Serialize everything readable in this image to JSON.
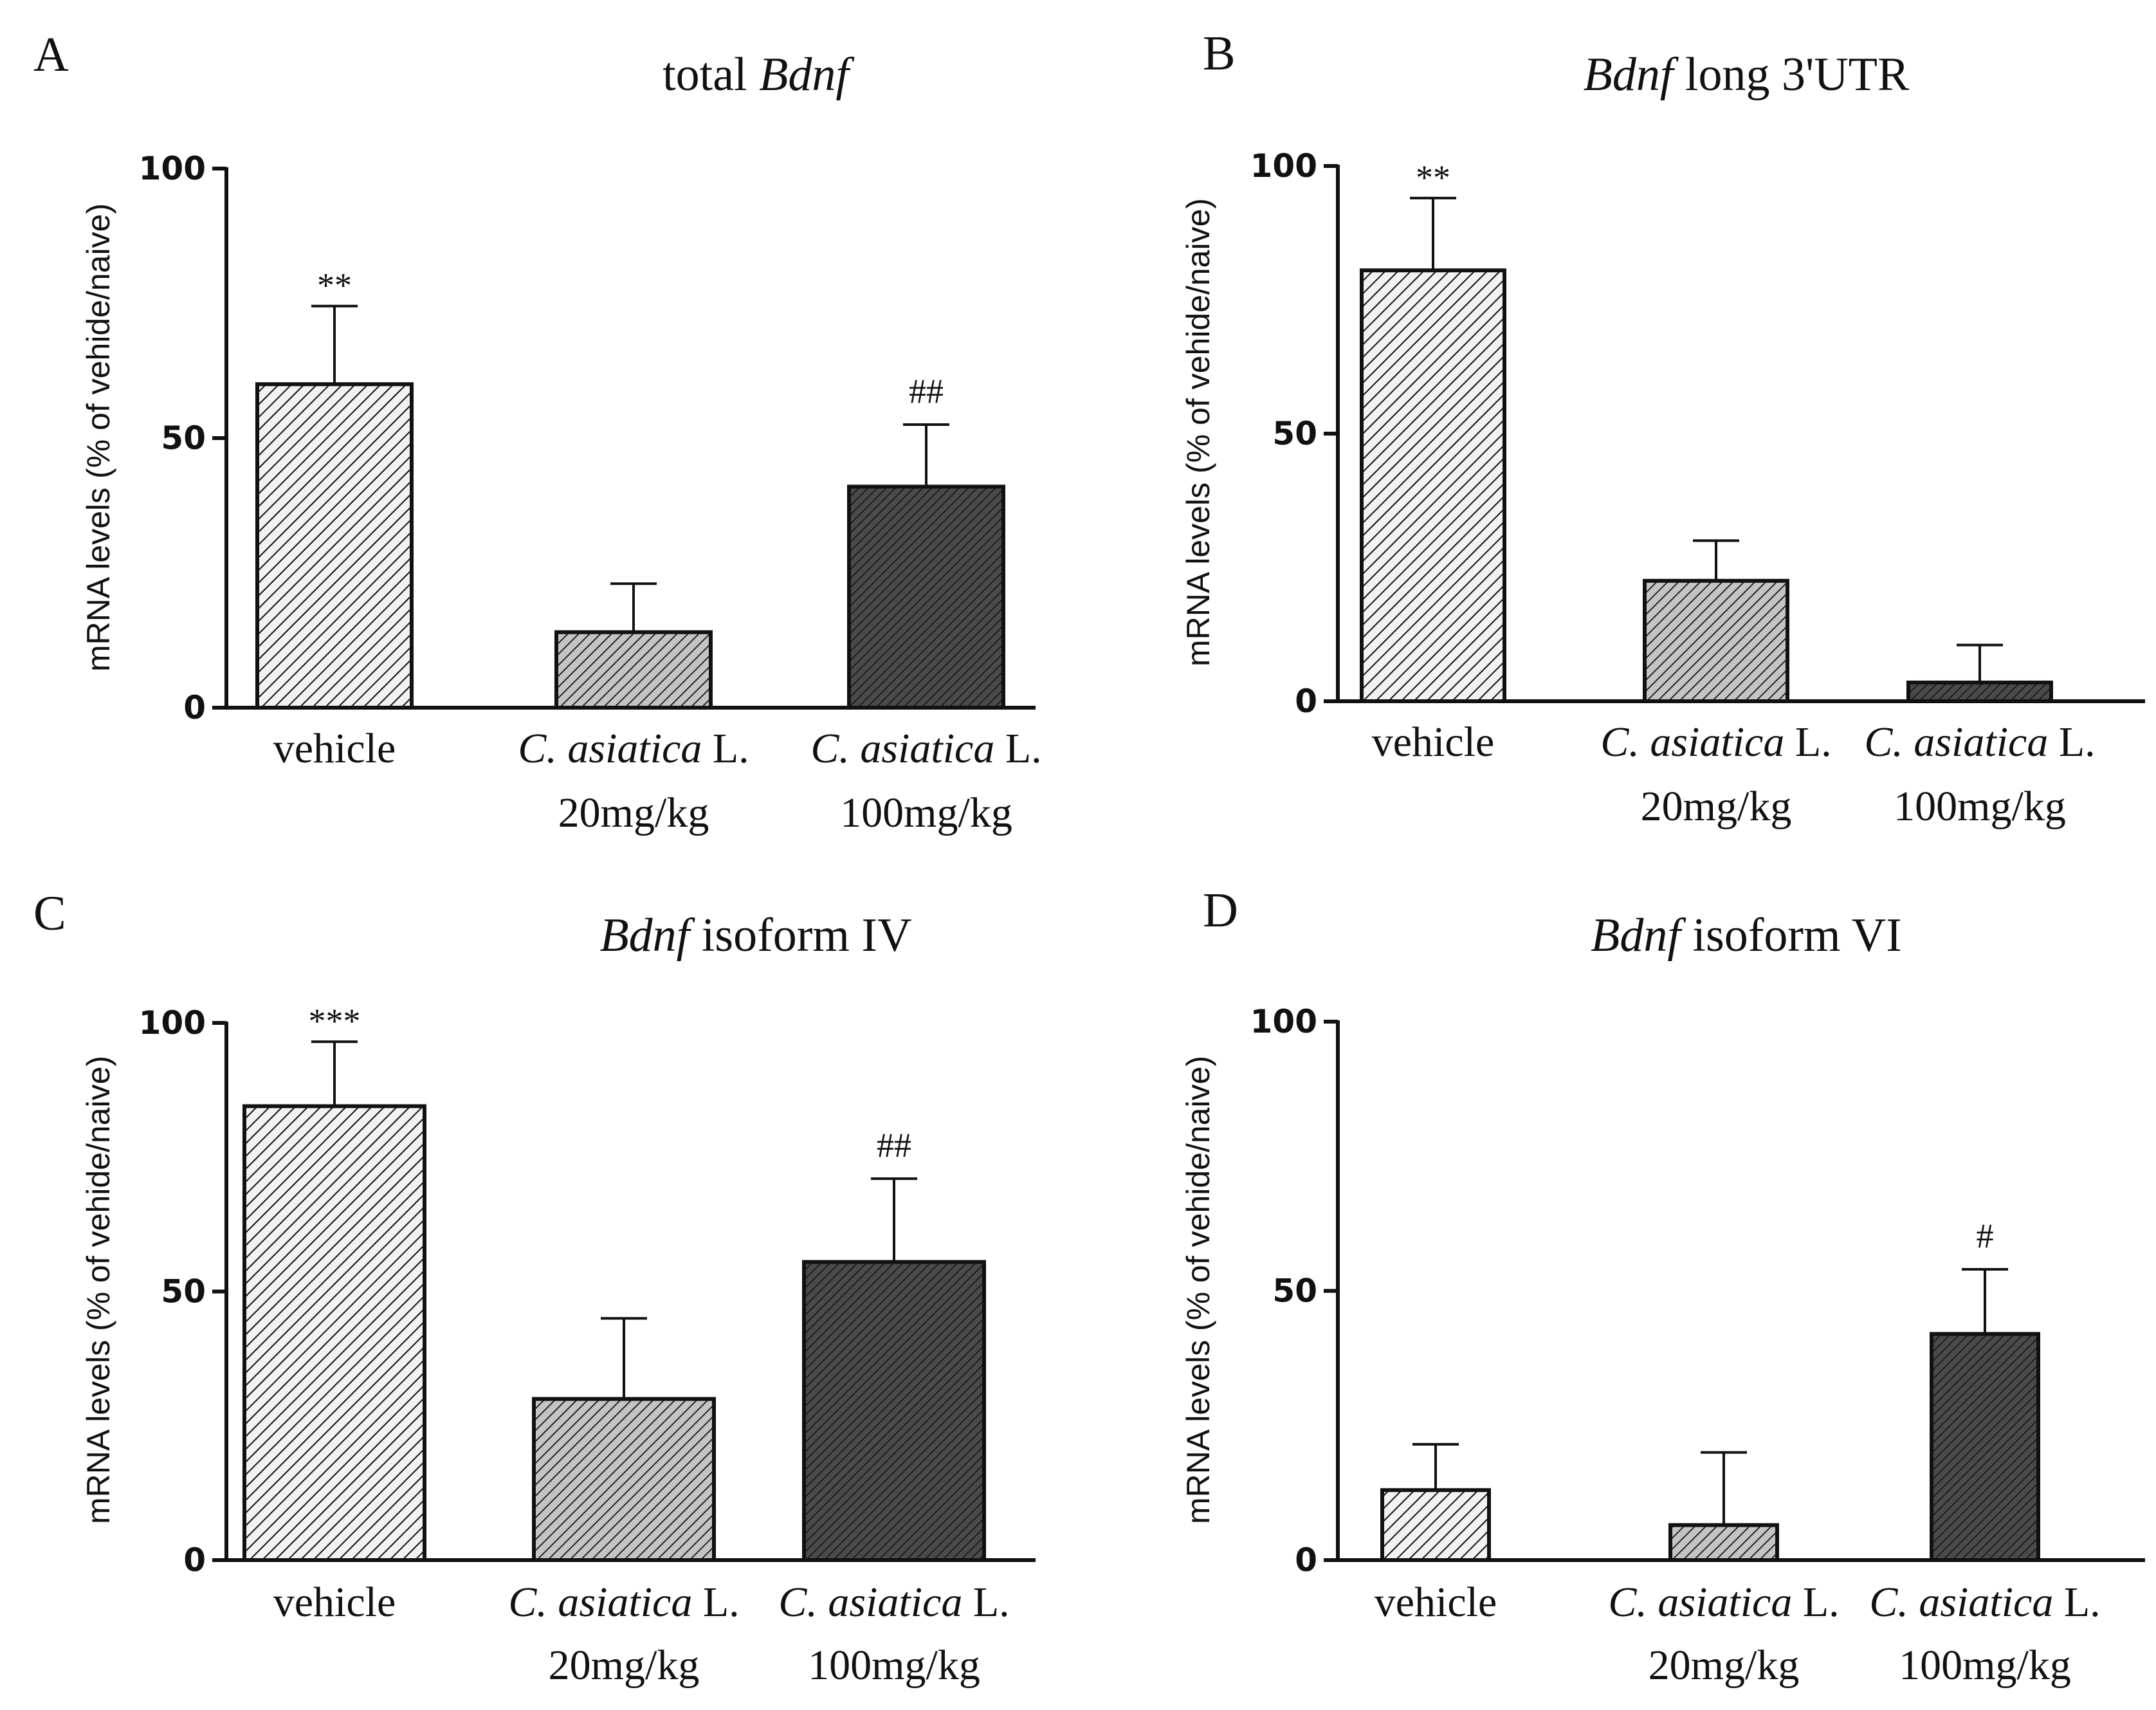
{
  "chart_data": [
    {
      "type": "bar",
      "panel": "A",
      "title_plain": "total ",
      "title_italic": "Bdnf",
      "title_plain_after": "",
      "ylabel": "mRNA levels (% of vehide/naive)",
      "ylim": [
        0,
        100
      ],
      "yticks": [
        "0",
        "50",
        "100"
      ],
      "categories": [
        {
          "line1_italic": "",
          "line1_plain": "vehicle",
          "line2": ""
        },
        {
          "line1_italic": "C. asiatica",
          "line1_plain": " L.",
          "line2": "20mg/kg"
        },
        {
          "line1_italic": "C. asiatica",
          "line1_plain": " L.",
          "line2": "100mg/kg"
        }
      ],
      "values": [
        60,
        14,
        41
      ],
      "errors": [
        14.5,
        9,
        11.5
      ],
      "significance": [
        "**",
        "",
        "##"
      ]
    },
    {
      "type": "bar",
      "panel": "B",
      "title_plain": "",
      "title_italic": "Bdnf",
      "title_plain_after": " long 3'UTR",
      "ylabel": "mRNA levels (% of vehide/naive)",
      "ylim": [
        0,
        100
      ],
      "yticks": [
        "0",
        "50",
        "100"
      ],
      "categories": [
        {
          "line1_italic": "",
          "line1_plain": "vehicle",
          "line2": ""
        },
        {
          "line1_italic": "C. asiatica",
          "line1_plain": " L.",
          "line2": "20mg/kg"
        },
        {
          "line1_italic": "C. asiatica",
          "line1_plain": " L.",
          "line2": "100mg/kg"
        }
      ],
      "values": [
        80.5,
        22.5,
        3.5
      ],
      "errors": [
        13.5,
        7.5,
        7
      ],
      "significance": [
        "**",
        "",
        ""
      ]
    },
    {
      "type": "bar",
      "panel": "C",
      "title_plain": "",
      "title_italic": "Bdnf",
      "title_plain_after": " isoform IV",
      "ylabel": "mRNA levels (% of vehide/naive)",
      "ylim": [
        0,
        100
      ],
      "yticks": [
        "0",
        "50",
        "100"
      ],
      "categories": [
        {
          "line1_italic": "",
          "line1_plain": "vehicle",
          "line2": ""
        },
        {
          "line1_italic": "C. asiatica",
          "line1_plain": " L.",
          "line2": "20mg/kg"
        },
        {
          "line1_italic": "C. asiatica",
          "line1_plain": " L.",
          "line2": "100mg/kg"
        }
      ],
      "values": [
        84.5,
        30,
        55.5
      ],
      "errors": [
        12,
        15,
        15.5
      ],
      "significance": [
        "***",
        "",
        "##"
      ]
    },
    {
      "type": "bar",
      "panel": "D",
      "title_plain": "",
      "title_italic": "Bdnf",
      "title_plain_after": " isoform VI",
      "ylabel": "mRNA levels (% of vehide/naive)",
      "ylim": [
        0,
        100
      ],
      "yticks": [
        "0",
        "50",
        "100"
      ],
      "categories": [
        {
          "line1_italic": "",
          "line1_plain": "vehicle",
          "line2": ""
        },
        {
          "line1_italic": "C. asiatica",
          "line1_plain": " L.",
          "line2": "20mg/kg"
        },
        {
          "line1_italic": "C. asiatica",
          "line1_plain": " L.",
          "line2": "100mg/kg"
        }
      ],
      "values": [
        13,
        6.5,
        42
      ],
      "errors": [
        8.5,
        13.5,
        12
      ],
      "significance": [
        "",
        "",
        "#"
      ]
    }
  ],
  "colors": {
    "vehicle_fill": "#f2f2f2",
    "dose20_fill": "#c4c4c4",
    "dose100_fill": "#4a4a4a",
    "hatch": "#111111",
    "axis": "#111111"
  }
}
